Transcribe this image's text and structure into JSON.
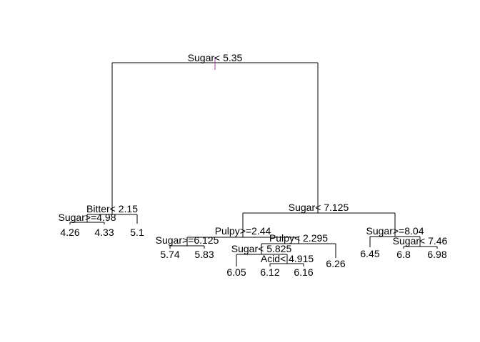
{
  "tree": {
    "splits": {
      "root": "Sugar< 5.35",
      "bitter": "Bitter< 2.15",
      "sugar_498": "Sugar>=4.98",
      "sugar_7125": "Sugar< 7.125",
      "pulpy_244": "Pulpy>=2.44",
      "sugar_6125": "Sugar>=6.125",
      "pulpy_2295": "Pulpy< 2.295",
      "sugar_5825": "Sugar< 5.825",
      "acid_4915": "Acid< 4.915",
      "sugar_804": "Sugar>=8.04",
      "sugar_746": "Sugar< 7.46"
    },
    "leaves": [
      "4.26",
      "4.33",
      "5.1",
      "5.74",
      "5.83",
      "6.05",
      "6.12",
      "6.16",
      "6.26",
      "6.45",
      "6.8",
      "6.98"
    ]
  }
}
